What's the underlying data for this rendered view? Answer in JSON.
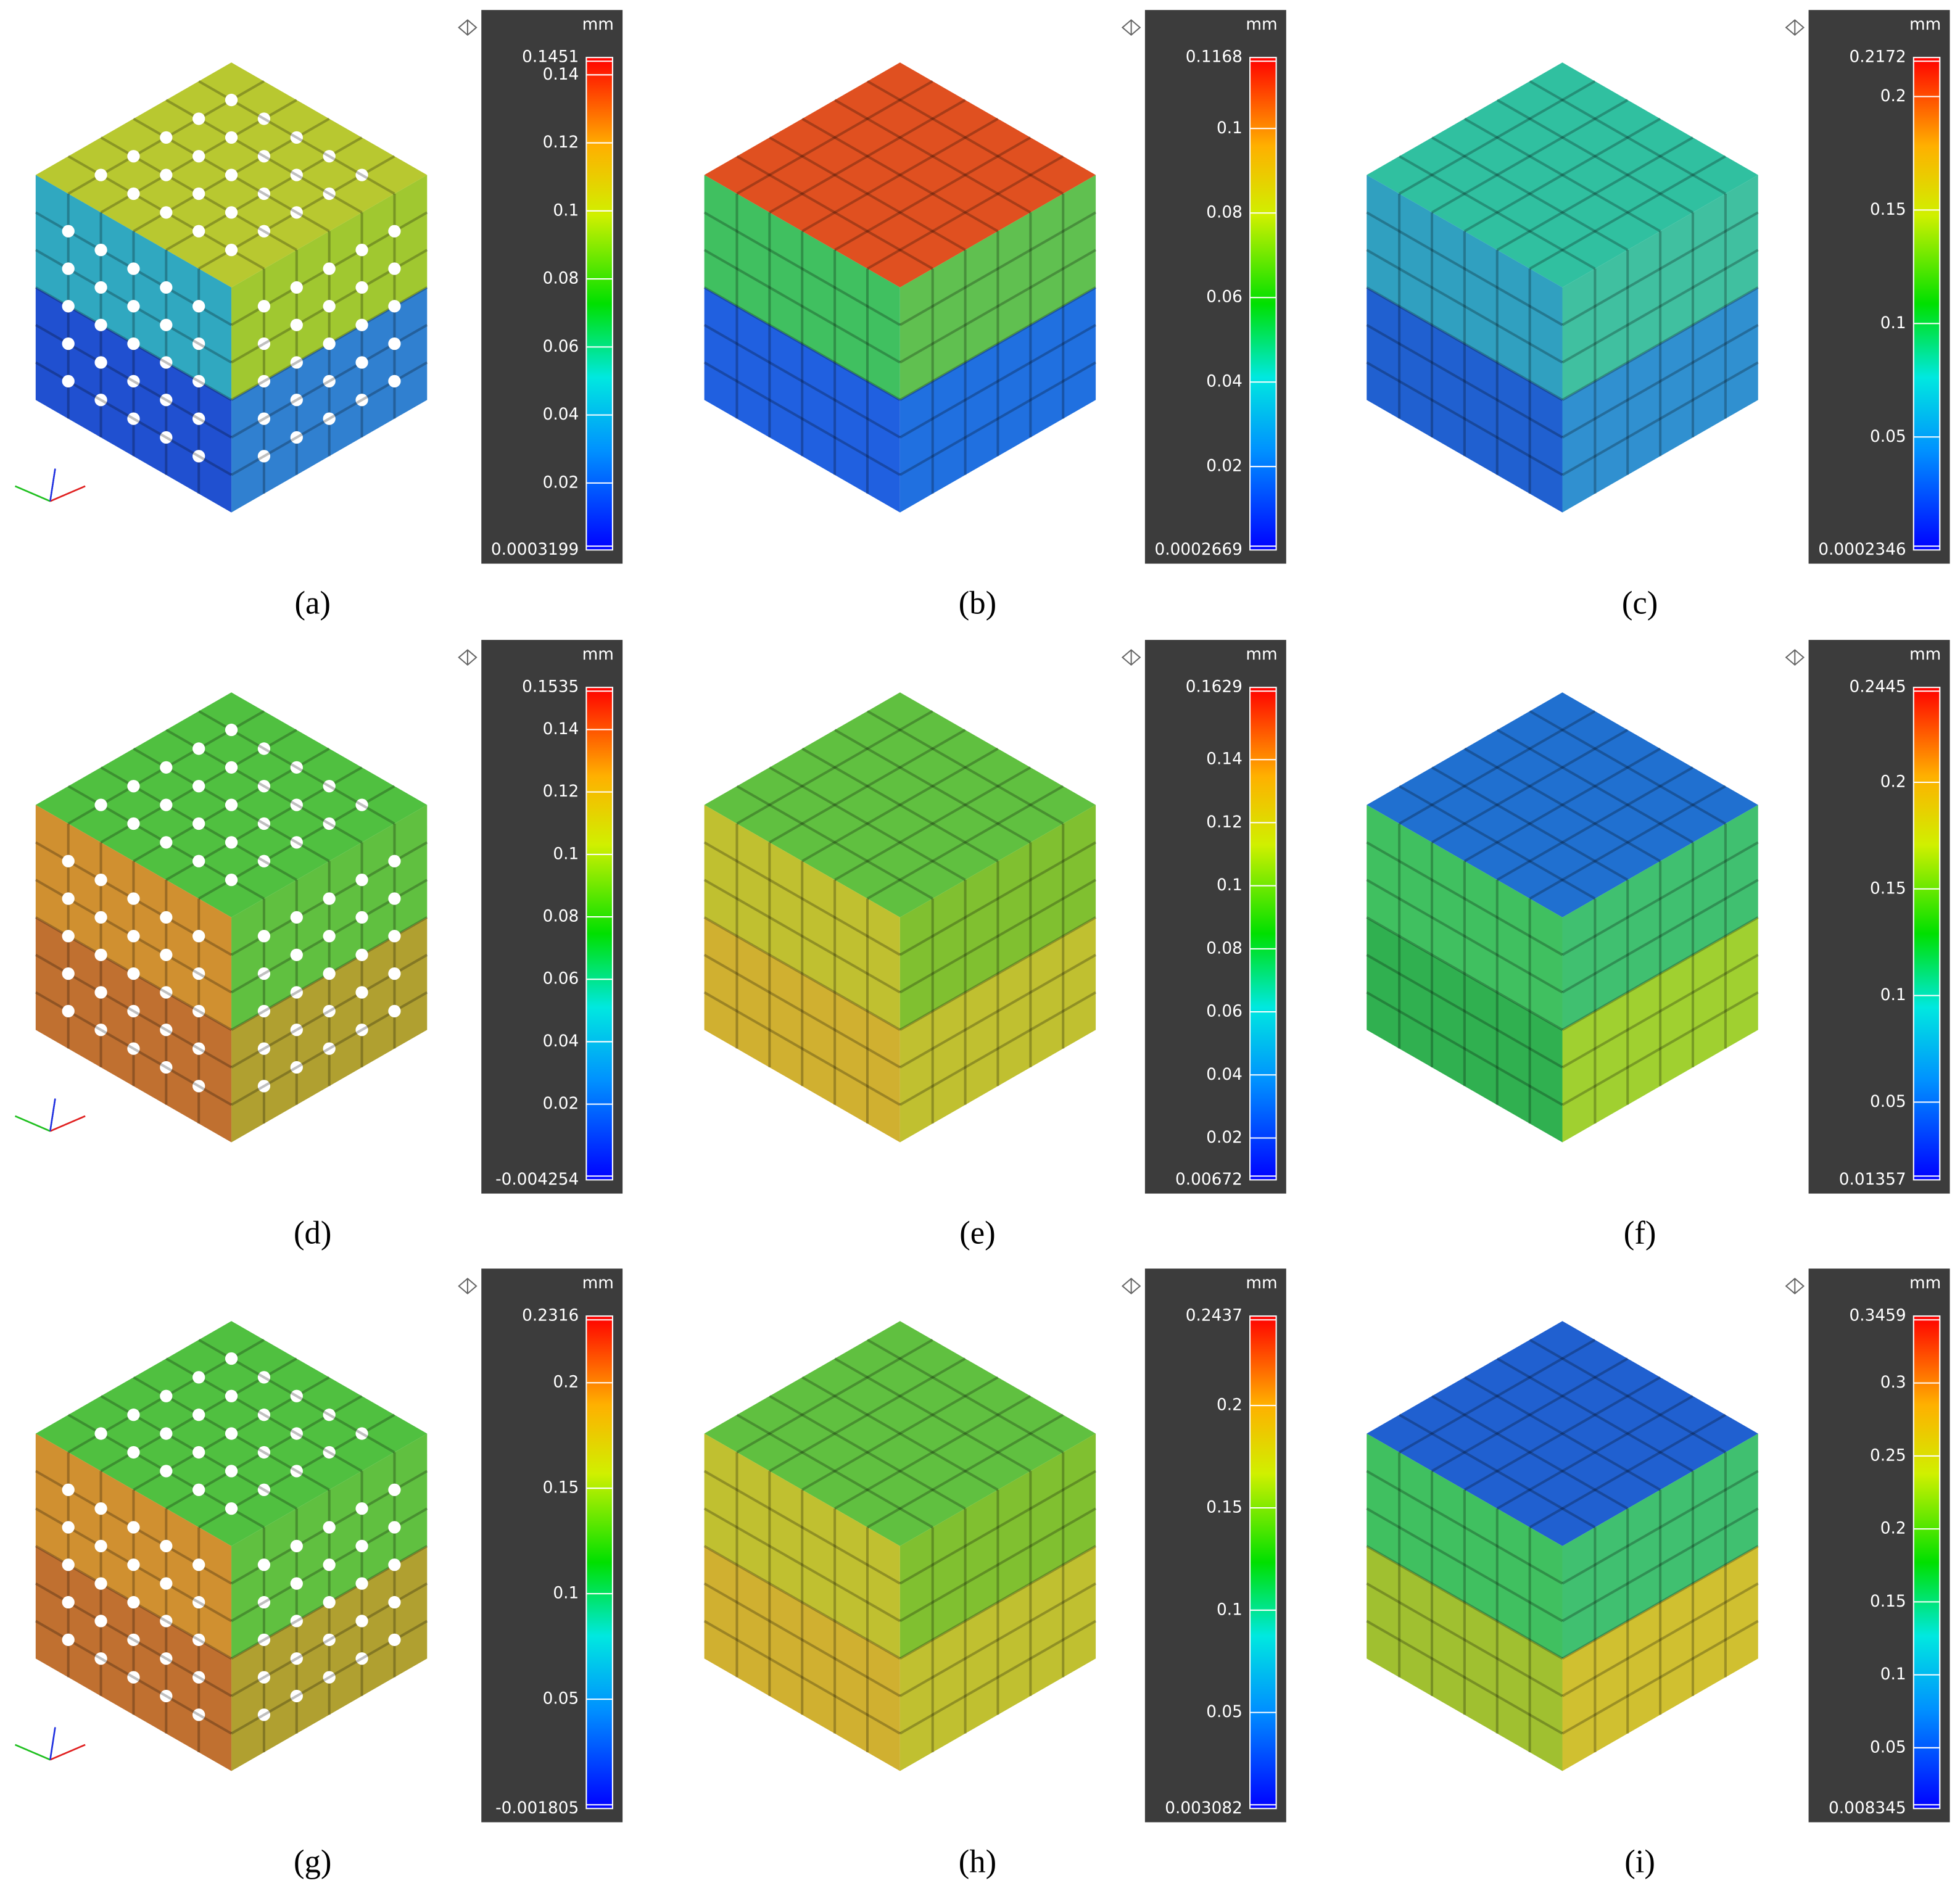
{
  "panels": [
    {
      "caption": "(a)",
      "colorbar": {
        "unit": "mm",
        "lim": [
          0.0003199,
          0.1451
        ],
        "ticks": [
          0.02,
          0.04,
          0.06,
          0.08,
          0.1,
          0.12,
          0.14
        ]
      }
    },
    {
      "caption": "(b)",
      "colorbar": {
        "unit": "mm",
        "lim": [
          0.0002669,
          0.1168
        ],
        "ticks": [
          0.02,
          0.04,
          0.06,
          0.08,
          0.1
        ]
      }
    },
    {
      "caption": "(c)",
      "colorbar": {
        "unit": "mm",
        "lim": [
          0.0002346,
          0.2172
        ],
        "ticks": [
          0.05,
          0.1,
          0.15,
          0.2
        ]
      }
    },
    {
      "caption": "(d)",
      "colorbar": {
        "unit": "mm",
        "lim": [
          -0.004254,
          0.1535
        ],
        "ticks": [
          0.02,
          0.04,
          0.06,
          0.08,
          0.1,
          0.12,
          0.14
        ]
      }
    },
    {
      "caption": "(e)",
      "colorbar": {
        "unit": "mm",
        "lim": [
          0.00672,
          0.1629
        ],
        "ticks": [
          0.02,
          0.04,
          0.06,
          0.08,
          0.1,
          0.12,
          0.14
        ]
      }
    },
    {
      "caption": "(f)",
      "colorbar": {
        "unit": "mm",
        "lim": [
          0.01357,
          0.2445
        ],
        "ticks": [
          0.05,
          0.1,
          0.15,
          0.2
        ]
      }
    },
    {
      "caption": "(g)",
      "colorbar": {
        "unit": "mm",
        "lim": [
          -0.001805,
          0.2316
        ],
        "ticks": [
          0.05,
          0.1,
          0.15,
          0.2
        ]
      }
    },
    {
      "caption": "(h)",
      "colorbar": {
        "unit": "mm",
        "lim": [
          0.003082,
          0.2437
        ],
        "ticks": [
          0.05,
          0.1,
          0.15,
          0.2
        ]
      }
    },
    {
      "caption": "(i)",
      "colorbar": {
        "unit": "mm",
        "lim": [
          0.008345,
          0.3459
        ],
        "ticks": [
          0.05,
          0.1,
          0.15,
          0.2,
          0.25,
          0.3
        ]
      }
    }
  ]
}
